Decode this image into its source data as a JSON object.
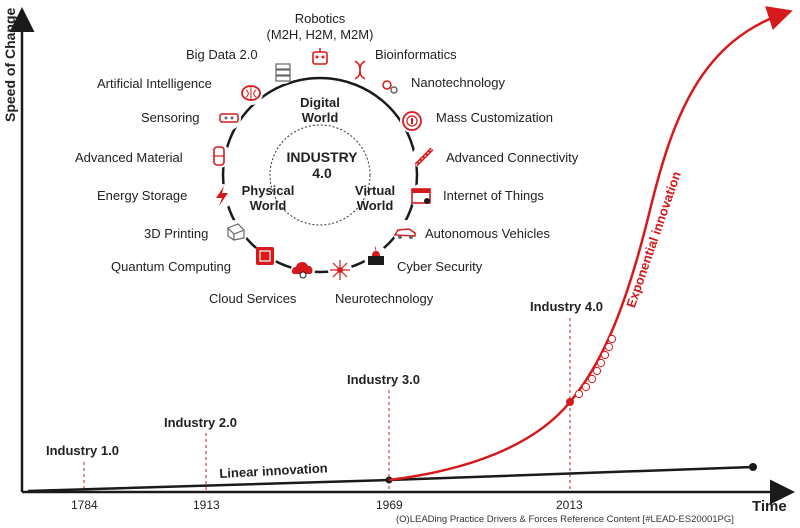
{
  "y_axis_label": "Speed of Change",
  "x_axis_label": "Time",
  "years": [
    "1784",
    "1913",
    "1969",
    "2013"
  ],
  "milestones": [
    "Industry 1.0",
    "Industry 2.0",
    "Industry 3.0",
    "Industry 4.0"
  ],
  "curve_labels": {
    "linear": "Linear innovation",
    "exponential": "Exponential innovation"
  },
  "core": {
    "title": "INDUSTRY",
    "version": "4.0",
    "digital": "Digital\nWorld",
    "physical": "Physical\nWorld",
    "virtual": "Virtual\nWorld"
  },
  "technologies": {
    "robotics": "Robotics",
    "robotics_sub": "(M2H, H2M, M2M)",
    "big_data": "Big Data 2.0",
    "bioinformatics": "Bioinformatics",
    "ai": "Artificial Intelligence",
    "nanotech": "Nanotechnology",
    "sensoring": "Sensoring",
    "mass_custom": "Mass Customization",
    "adv_material": "Advanced Material",
    "adv_connect": "Advanced Connectivity",
    "energy": "Energy Storage",
    "iot": "Internet of Things",
    "printing": "3D Printing",
    "auto_vehicles": "Autonomous Vehicles",
    "quantum": "Quantum Computing",
    "cyber": "Cyber Security",
    "cloud": "Cloud Services",
    "neuro": "Neurotechnology"
  },
  "footer": "(O)LEADing Practice Drivers & Forces Reference Content [#LEAD-ES20001PG]",
  "colors": {
    "accent": "#d7191c",
    "dark": "#1a1a1a",
    "icon_bg": "#e03030"
  }
}
